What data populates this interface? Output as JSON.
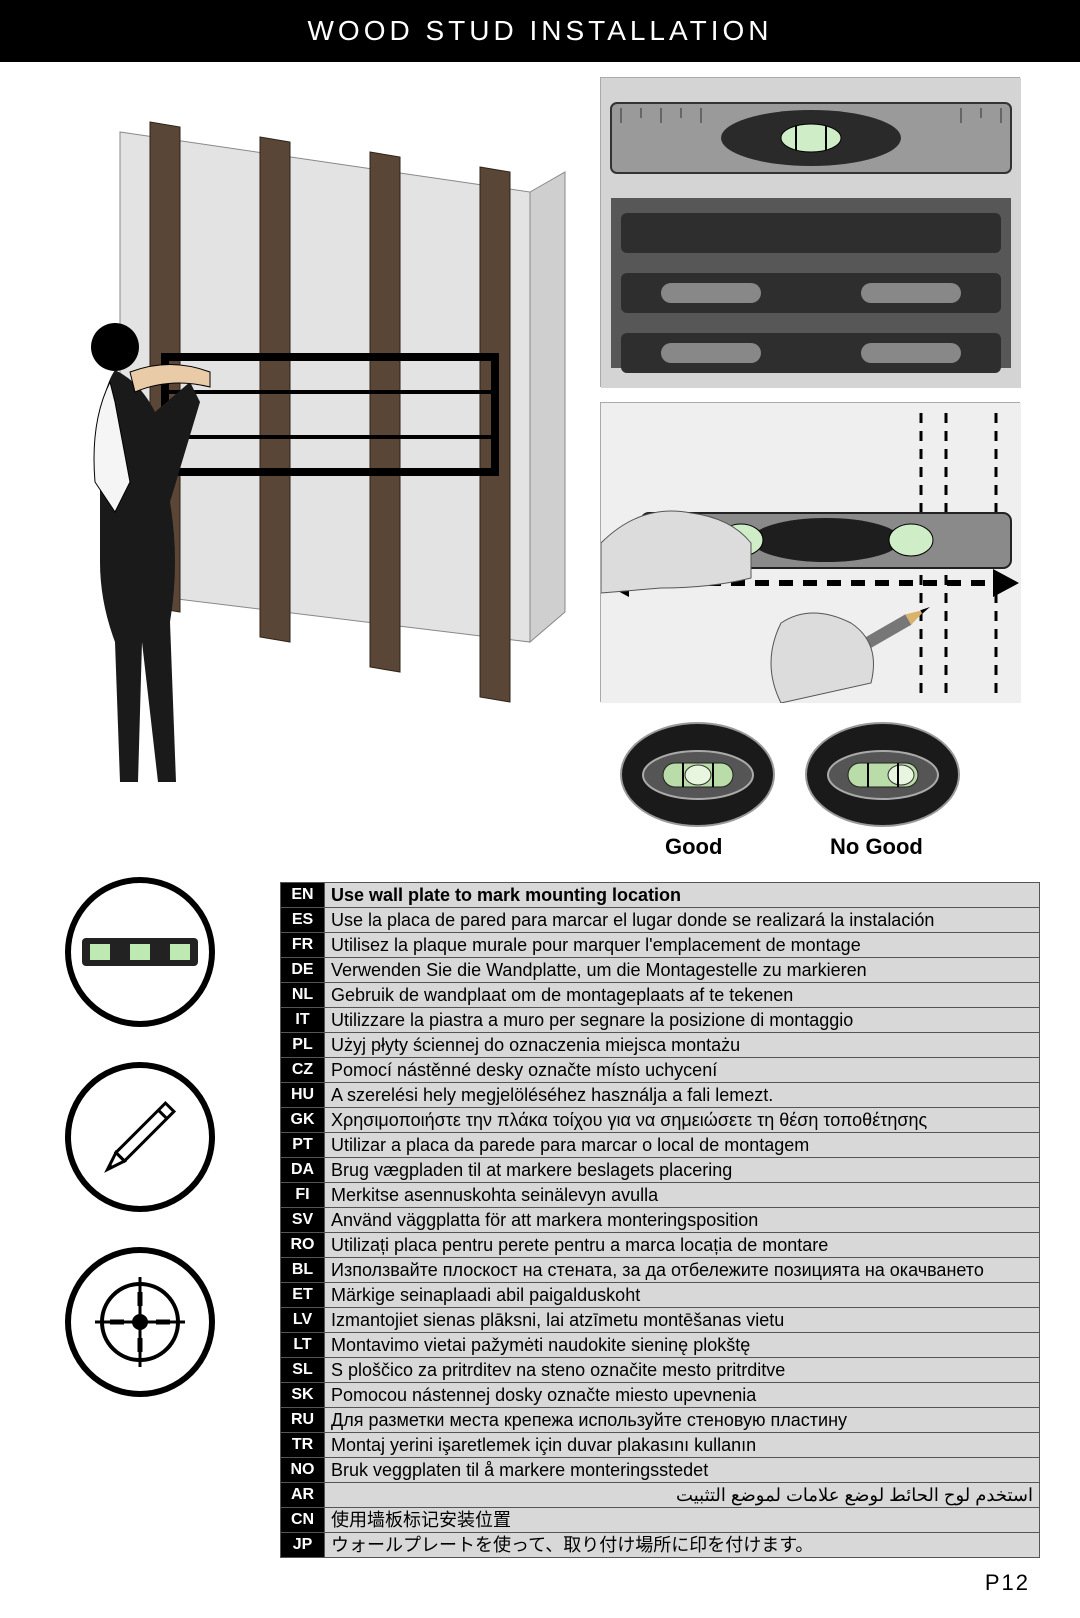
{
  "title": "WOOD STUD INSTALLATION",
  "good_label": "Good",
  "nogood_label": "No Good",
  "page_number": "P12",
  "colors": {
    "title_bg": "#000000",
    "title_fg": "#ffffff",
    "table_code_bg": "#000000",
    "table_code_fg": "#ffffff",
    "table_text_bg": "#d8d8d8",
    "icon_border": "#000000",
    "bubble_bg": "#1a1a1a"
  },
  "icons": [
    {
      "name": "level-icon"
    },
    {
      "name": "pencil-icon"
    },
    {
      "name": "crosshair-icon"
    }
  ],
  "figures": {
    "main": "person-holding-wall-plate-on-wood-studs",
    "fig1": "spirit-level-on-mounting-bracket",
    "fig2": "hand-marking-wall-with-level",
    "bubble_good": "level-bubble-centered",
    "bubble_nogood": "level-bubble-off-center"
  },
  "translations": [
    {
      "code": "EN",
      "text": "Use wall plate to mark mounting location",
      "bold": true
    },
    {
      "code": "ES",
      "text": "Use la placa de pared para marcar el lugar donde se realizará la instalación"
    },
    {
      "code": "FR",
      "text": "Utilisez la plaque murale pour marquer l'emplacement de montage"
    },
    {
      "code": "DE",
      "text": "Verwenden Sie die Wandplatte, um die Montagestelle zu markieren"
    },
    {
      "code": "NL",
      "text": "Gebruik de wandplaat om de montageplaats af te tekenen"
    },
    {
      "code": "IT",
      "text": "Utilizzare la piastra a muro per segnare la posizione di montaggio"
    },
    {
      "code": "PL",
      "text": "Użyj płyty ściennej do oznaczenia miejsca montażu"
    },
    {
      "code": "CZ",
      "text": "Pomocí nástěnné desky označte místo uchycení"
    },
    {
      "code": "HU",
      "text": "A szerelési hely megjelöléséhez használja a fali lemezt."
    },
    {
      "code": "GK",
      "text": "Χρησιμοποιήστε την πλάκα τοίχου για να σημειώσετε τη θέση τοποθέτησης"
    },
    {
      "code": "PT",
      "text": "Utilizar a placa da parede para marcar o local de montagem"
    },
    {
      "code": "DA",
      "text": "Brug vægpladen til at markere beslagets placering"
    },
    {
      "code": "FI",
      "text": "Merkitse asennuskohta seinälevyn avulla"
    },
    {
      "code": "SV",
      "text": "Använd väggplatta för att markera monteringsposition"
    },
    {
      "code": "RO",
      "text": "Utilizați placa pentru perete pentru a marca locația de montare"
    },
    {
      "code": "BL",
      "text": "Използвайте плоскост на стената, за да отбележите позицията на окачването"
    },
    {
      "code": "ET",
      "text": "Märkige seinaplaadi abil paigalduskoht"
    },
    {
      "code": "LV",
      "text": "Izmantojiet sienas plāksni, lai atzīmetu montēšanas vietu"
    },
    {
      "code": "LT",
      "text": "Montavimo vietai pažymėti naudokite sieninę plokštę"
    },
    {
      "code": "SL",
      "text": "S ploščico za pritrditev na steno označite mesto pritrditve"
    },
    {
      "code": "SK",
      "text": "Pomocou nástennej dosky označte miesto upevnenia"
    },
    {
      "code": "RU",
      "text": "Для разметки места крепежа используйте стеновую пластину"
    },
    {
      "code": "TR",
      "text": "Montaj yerini işaretlemek için duvar plakasını kullanın"
    },
    {
      "code": "NO",
      "text": "Bruk veggplaten til å markere monteringsstedet"
    },
    {
      "code": "AR",
      "text": "استخدم لوح الحائط لوضع علامات لموضع التثبيت",
      "rtl": true
    },
    {
      "code": "CN",
      "text": "使用墙板标记安装位置"
    },
    {
      "code": "JP",
      "text": "ウォールプレートを使って、取り付け場所に印を付けます。"
    }
  ]
}
